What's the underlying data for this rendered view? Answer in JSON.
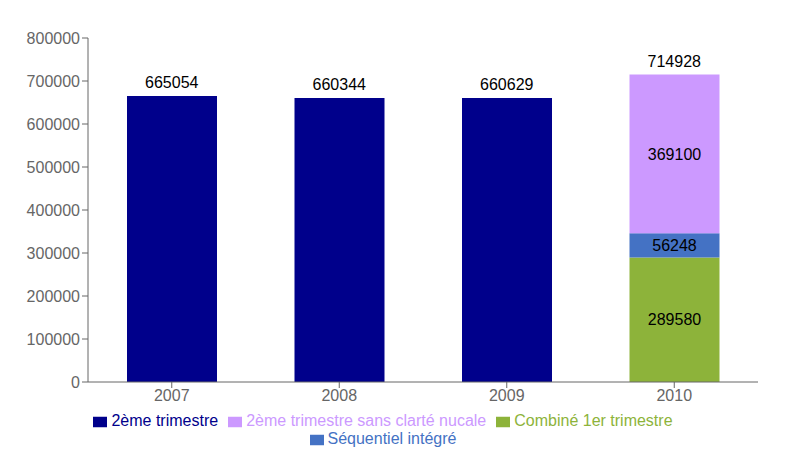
{
  "chart_data": {
    "type": "bar",
    "stacked": true,
    "categories": [
      "2007",
      "2008",
      "2009",
      "2010"
    ],
    "series": [
      {
        "name": "2ème trimestre",
        "color": "#00008B",
        "values": [
          665054,
          660344,
          660629,
          0
        ]
      },
      {
        "name": "Combiné 1er trimestre",
        "color": "#8DB33A",
        "values": [
          0,
          0,
          0,
          289580
        ],
        "data_labels": true
      },
      {
        "name": "Séquentiel intégré",
        "color": "#4472C4",
        "values": [
          0,
          0,
          0,
          56248
        ],
        "data_labels": true
      },
      {
        "name": "2ème trimestre sans clarté nucale",
        "color": "#CC99FF",
        "values": [
          0,
          0,
          0,
          369100
        ],
        "data_labels": true
      }
    ],
    "totals": [
      665054,
      660344,
      660629,
      714928
    ],
    "ylim": [
      0,
      800000
    ],
    "yticks": [
      0,
      100000,
      200000,
      300000,
      400000,
      500000,
      600000,
      700000,
      800000
    ],
    "grid": false,
    "legend": "bottom"
  }
}
